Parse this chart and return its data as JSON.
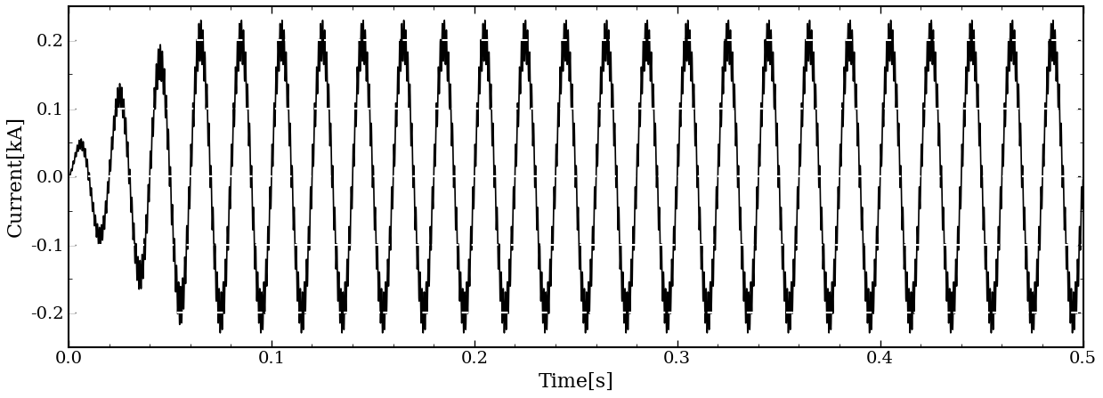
{
  "title": "",
  "xlabel": "Time[s]",
  "ylabel": "Current[kA]",
  "xlim": [
    0.0,
    0.5
  ],
  "ylim": [
    -0.25,
    0.25
  ],
  "yticks": [
    -0.2,
    -0.1,
    0.0,
    0.1,
    0.2
  ],
  "xticks": [
    0.0,
    0.1,
    0.2,
    0.3,
    0.4,
    0.5
  ],
  "signal_freq": 50,
  "signal_amplitude": 0.2,
  "ripple_freq": 1000,
  "ripple_amplitude": 0.03,
  "transient_duration": 0.06,
  "sample_rate": 50000,
  "duration": 0.5,
  "line_color": "#000000",
  "line_width": 1.2,
  "background_color": "#ffffff",
  "grid_color": "#ffffff",
  "grid_linestyle": "--",
  "grid_linewidth": 1.5,
  "xlabel_fontsize": 16,
  "ylabel_fontsize": 16,
  "tick_fontsize": 14
}
